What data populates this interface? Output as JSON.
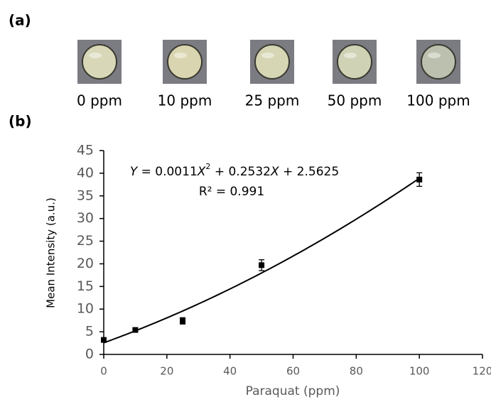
{
  "panel_a": {
    "label": "(a)",
    "samples": [
      "0 ppm",
      "10 ppm",
      "25 ppm",
      "50 ppm",
      "100 ppm"
    ]
  },
  "panel_b_label": "(b)",
  "chart_data": {
    "type": "scatter",
    "x_label": "Paraquat (ppm)",
    "y_label": "Mean Intensity (a.u.)",
    "x": [
      0,
      10,
      25,
      50,
      100
    ],
    "values": [
      3.2,
      5.4,
      7.4,
      19.7,
      38.6
    ],
    "errors": [
      0.3,
      0.4,
      0.7,
      1.2,
      1.5
    ],
    "color": "#000000",
    "xlim": [
      0,
      120
    ],
    "xticks": [
      0,
      20,
      40,
      60,
      80,
      100,
      120
    ],
    "ylim": [
      0,
      45
    ],
    "yticks": [
      0,
      5,
      10,
      15,
      20,
      25,
      30,
      35,
      40,
      45
    ],
    "fit": {
      "coefficients": [
        0.0011,
        0.2532,
        2.5625
      ],
      "equation_parts": [
        "Y",
        " = 0.0011",
        "X",
        "2",
        " + 0.2532",
        "X",
        " + 2.5625"
      ],
      "r2_label": "R² = 0.991"
    }
  }
}
